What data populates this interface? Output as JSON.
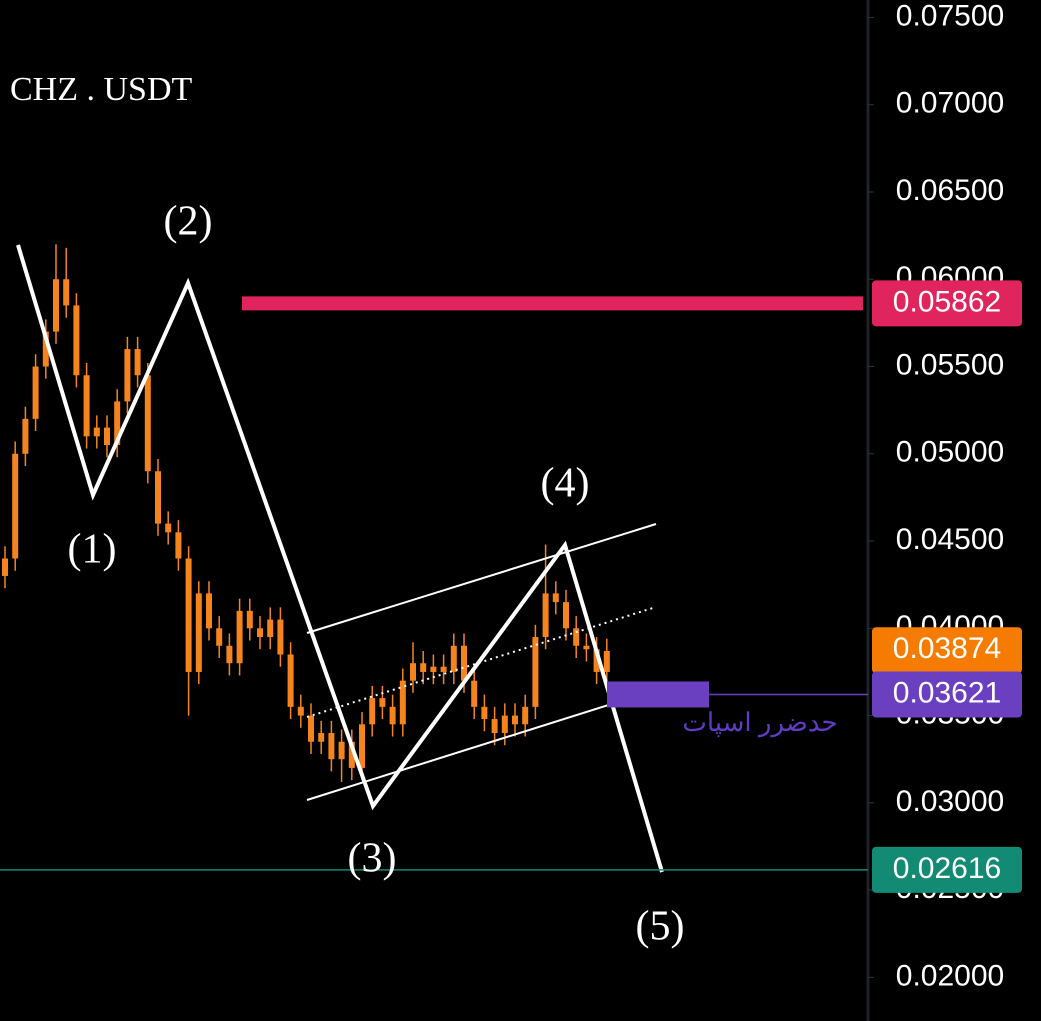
{
  "chart_data": {
    "type": "candlestick",
    "title": "CHZ . USDT",
    "color": "#f5841f",
    "open": [
      0.043,
      0.044,
      0.05,
      0.052,
      0.055,
      0.057,
      0.06,
      0.0585,
      0.0545,
      0.051,
      0.0515,
      0.0505,
      0.053,
      0.056,
      0.0545,
      0.049,
      0.046,
      0.0455,
      0.044,
      0.0375,
      0.042,
      0.04,
      0.039,
      0.038,
      0.041,
      0.04,
      0.0395,
      0.0405,
      0.0385,
      0.0355,
      0.035,
      0.0335,
      0.034,
      0.0325,
      0.0335,
      0.032,
      0.0345,
      0.036,
      0.0355,
      0.0345,
      0.037,
      0.038,
      0.0375,
      0.0378,
      0.0375,
      0.039,
      0.037,
      0.0355,
      0.0348,
      0.034,
      0.035,
      0.0345,
      0.0355,
      0.0395,
      0.042,
      0.0415,
      0.04,
      0.039,
      0.0388,
      0.0375
    ],
    "high": [
      0.0447,
      0.0507,
      0.0527,
      0.0557,
      0.0577,
      0.062,
      0.0618,
      0.0592,
      0.0552,
      0.0522,
      0.0522,
      0.0537,
      0.0567,
      0.0567,
      0.0552,
      0.0497,
      0.0467,
      0.0462,
      0.0447,
      0.0427,
      0.0427,
      0.0407,
      0.0397,
      0.0417,
      0.0417,
      0.0407,
      0.0412,
      0.0412,
      0.0392,
      0.0362,
      0.0357,
      0.0347,
      0.0347,
      0.0342,
      0.0342,
      0.0352,
      0.0367,
      0.0367,
      0.0362,
      0.0377,
      0.0392,
      0.0387,
      0.0385,
      0.0385,
      0.0397,
      0.0397,
      0.0377,
      0.0362,
      0.0355,
      0.0357,
      0.0357,
      0.0362,
      0.0402,
      0.0448,
      0.0427,
      0.0422,
      0.0407,
      0.0397,
      0.0395,
      0.0394
    ],
    "low": [
      0.0423,
      0.0433,
      0.0493,
      0.0513,
      0.0543,
      0.0563,
      0.0578,
      0.0538,
      0.0503,
      0.0503,
      0.0498,
      0.0498,
      0.0523,
      0.0538,
      0.0483,
      0.0453,
      0.0448,
      0.0433,
      0.035,
      0.0368,
      0.0393,
      0.0383,
      0.0373,
      0.0373,
      0.0393,
      0.0388,
      0.0388,
      0.0378,
      0.0348,
      0.0343,
      0.0328,
      0.0328,
      0.0318,
      0.0312,
      0.0313,
      0.0313,
      0.0338,
      0.0348,
      0.0338,
      0.0338,
      0.0363,
      0.0368,
      0.0368,
      0.0368,
      0.0368,
      0.0363,
      0.0348,
      0.0341,
      0.0333,
      0.0333,
      0.0338,
      0.0338,
      0.0348,
      0.0388,
      0.0408,
      0.0393,
      0.0383,
      0.0381,
      0.0368,
      0.0368
    ],
    "close": [
      0.044,
      0.05,
      0.052,
      0.055,
      0.057,
      0.06,
      0.0585,
      0.0545,
      0.051,
      0.0515,
      0.0505,
      0.053,
      0.056,
      0.0545,
      0.049,
      0.046,
      0.0455,
      0.044,
      0.0375,
      0.042,
      0.04,
      0.039,
      0.038,
      0.041,
      0.04,
      0.0395,
      0.0405,
      0.0385,
      0.0355,
      0.035,
      0.0335,
      0.034,
      0.0325,
      0.0335,
      0.032,
      0.0345,
      0.036,
      0.0355,
      0.0345,
      0.037,
      0.038,
      0.0375,
      0.0378,
      0.0375,
      0.039,
      0.037,
      0.0355,
      0.0348,
      0.034,
      0.035,
      0.0345,
      0.0355,
      0.0395,
      0.042,
      0.0415,
      0.04,
      0.039,
      0.0388,
      0.0375,
      0.0387
    ],
    "ylim": [
      0.0175,
      0.076
    ],
    "yticks": [
      {
        "value": 0.075,
        "label": "0.07500"
      },
      {
        "value": 0.07,
        "label": "0.07000"
      },
      {
        "value": 0.065,
        "label": "0.06500"
      },
      {
        "value": 0.06,
        "label": "0.06000"
      },
      {
        "value": 0.055,
        "label": "0.05500"
      },
      {
        "value": 0.05,
        "label": "0.05000"
      },
      {
        "value": 0.045,
        "label": "0.04500"
      },
      {
        "value": 0.04,
        "label": "0.04000"
      },
      {
        "value": 0.035,
        "label": "0.03500"
      },
      {
        "value": 0.03,
        "label": "0.03000"
      },
      {
        "value": 0.025,
        "label": "0.02500"
      },
      {
        "value": 0.02,
        "label": "0.02000"
      }
    ],
    "price_lines": [
      {
        "value": 0.05862,
        "label": "0.05862",
        "color": "#e0245e"
      },
      {
        "value": 0.03874,
        "label": "0.03874",
        "color": "#f57c00"
      },
      {
        "value": 0.03621,
        "label": "0.03621",
        "color": "#6a3fc0"
      },
      {
        "value": 0.02616,
        "label": "0.02616",
        "color": "#138a74"
      }
    ],
    "stop_label": "حدضرر اسپات",
    "waves": [
      "(1)",
      "(2)",
      "(3)",
      "(4)",
      "(5)"
    ]
  }
}
